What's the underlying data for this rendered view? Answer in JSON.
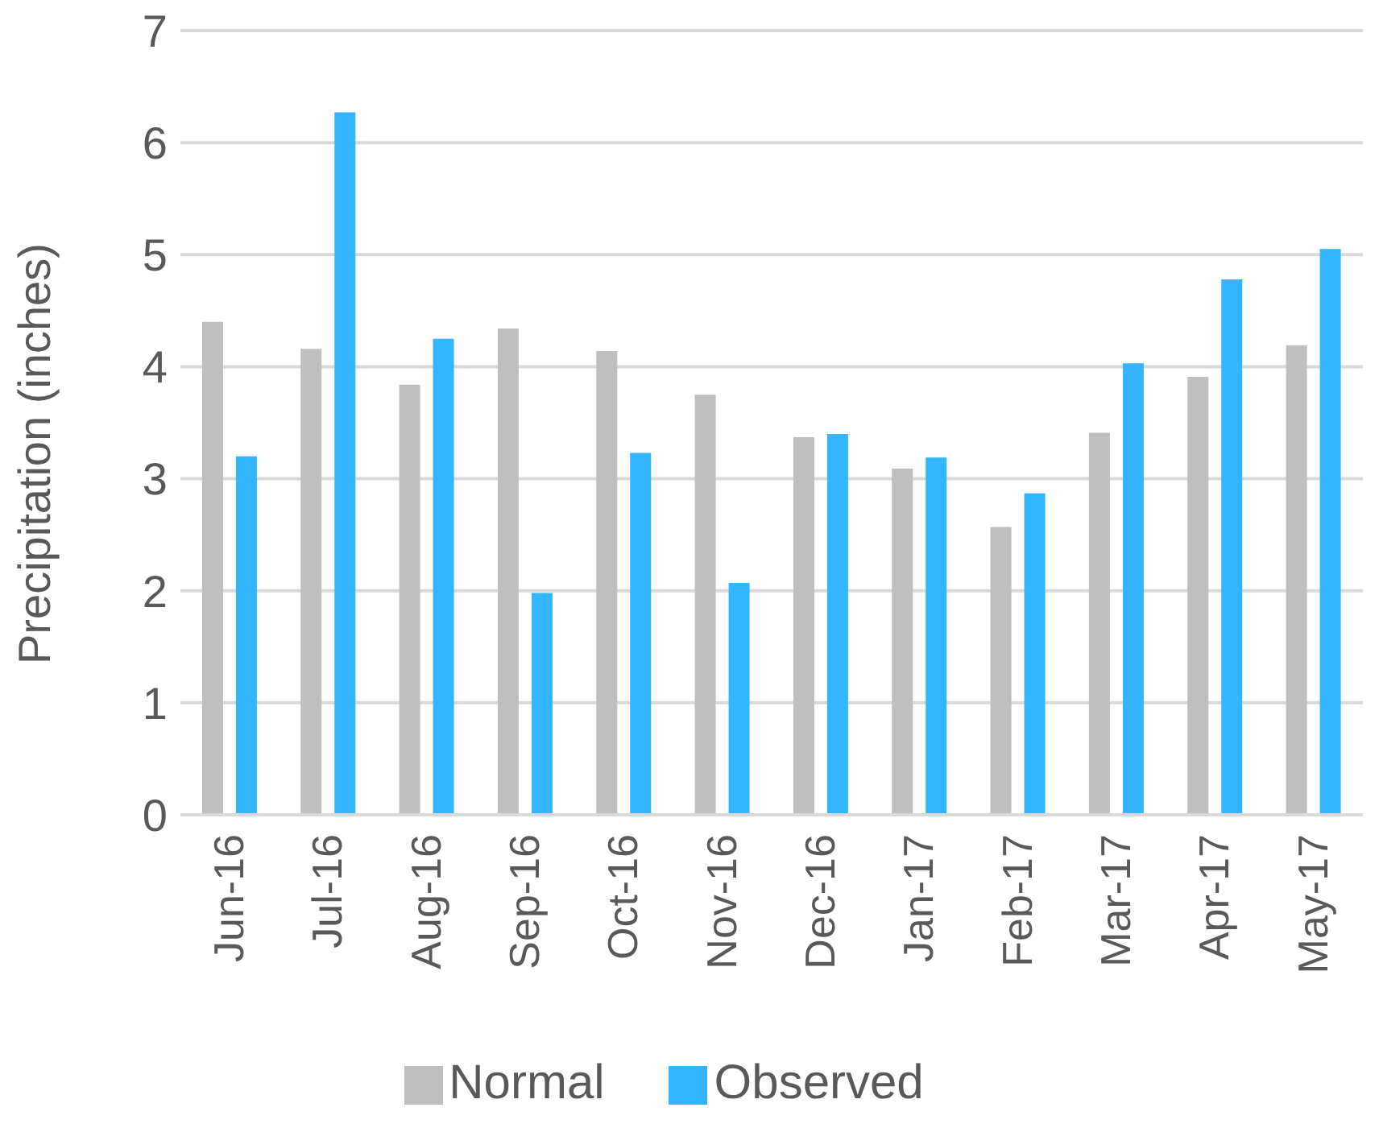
{
  "chart_data": {
    "type": "bar",
    "ylabel": "Precipitation (inches)",
    "categories": [
      "Jun-16",
      "Jul-16",
      "Aug-16",
      "Sep-16",
      "Oct-16",
      "Nov-16",
      "Dec-16",
      "Jan-17",
      "Feb-17",
      "Mar-17",
      "Apr-17",
      "May-17"
    ],
    "series": [
      {
        "name": "Normal",
        "color": "#bfbfbf",
        "values": [
          4.4,
          4.16,
          3.84,
          4.34,
          4.14,
          3.75,
          3.37,
          3.09,
          2.57,
          3.41,
          3.91,
          4.19
        ]
      },
      {
        "name": "Observed",
        "color": "#33b5ff",
        "values": [
          3.2,
          6.27,
          4.25,
          1.98,
          3.23,
          2.07,
          3.4,
          3.19,
          2.87,
          4.03,
          4.78,
          5.05
        ]
      }
    ],
    "ylim": [
      0,
      7
    ],
    "yticks": [
      0,
      1,
      2,
      3,
      4,
      5,
      6,
      7
    ],
    "grid": "y",
    "legend": "bottom"
  }
}
